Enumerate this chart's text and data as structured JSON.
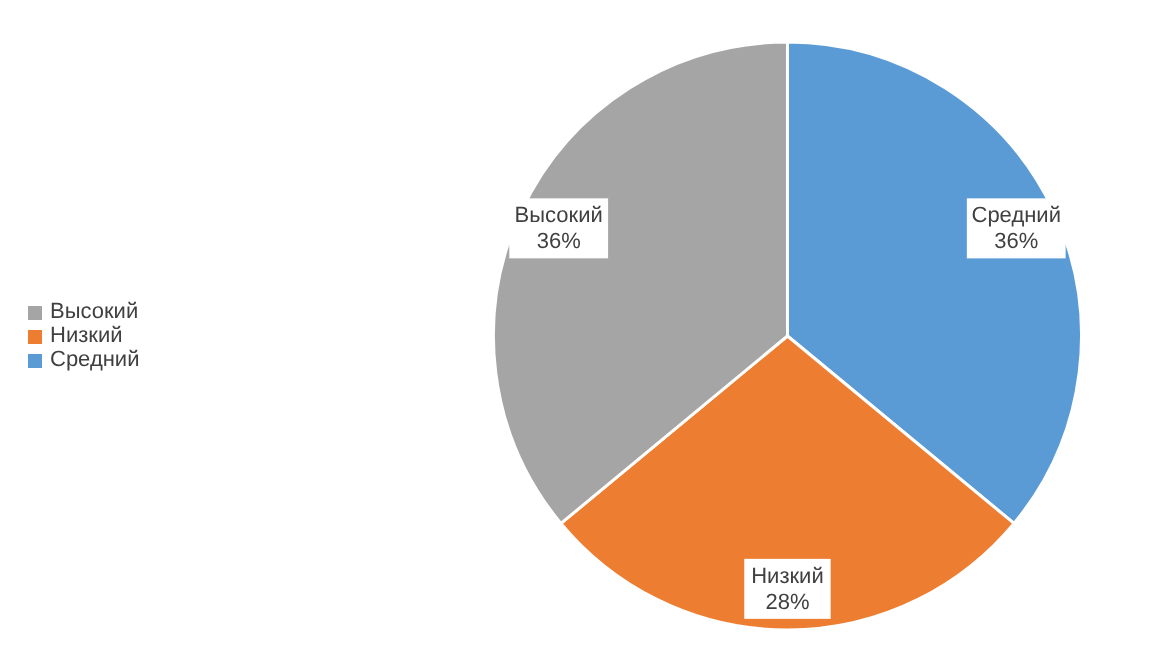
{
  "chart_data": {
    "type": "pie",
    "categories": [
      "Средний",
      "Низкий",
      "Высокий"
    ],
    "values": [
      36,
      28,
      36
    ],
    "colors": [
      "#5b9bd5",
      "#ed7d31",
      "#a5a5a5"
    ],
    "value_labels": [
      "36%",
      "28%",
      "36%"
    ],
    "legend": "left"
  }
}
